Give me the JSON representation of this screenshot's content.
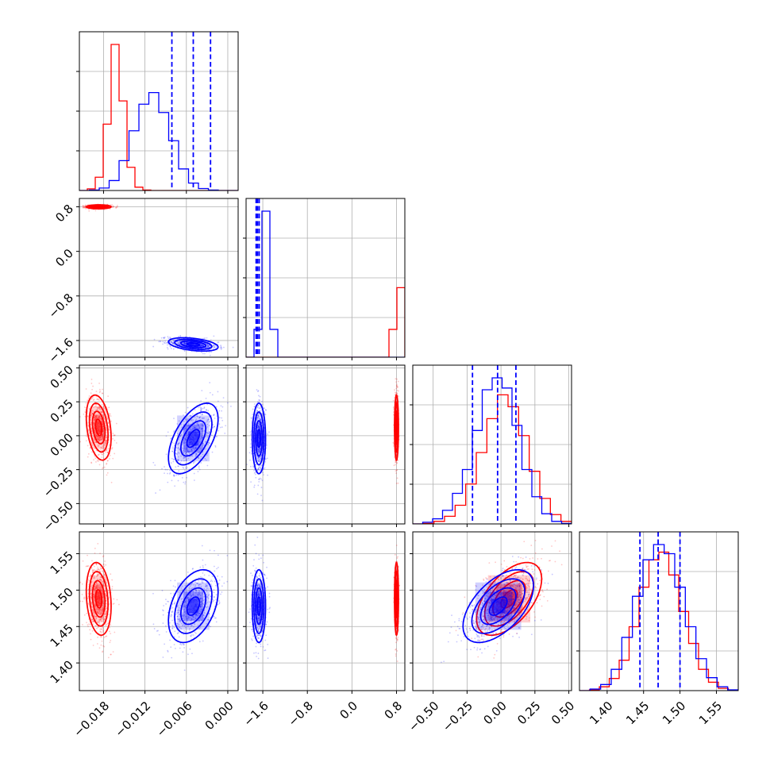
{
  "chart_data": {
    "type": "corner",
    "title": "",
    "grid": true,
    "colors": {
      "series_a": "#ff0000",
      "series_b": "#0000ff"
    },
    "parameters": [
      {
        "range": [
          -0.0215,
          0.0015
        ],
        "ticks": [
          -0.018,
          -0.012,
          -0.006,
          0.0
        ],
        "tick_labels": [
          "−0.018",
          "−0.012",
          "−0.006",
          "0.000"
        ]
      },
      {
        "range": [
          -1.9,
          0.95
        ],
        "ticks": [
          -1.6,
          -0.8,
          0.0,
          0.8
        ],
        "tick_labels": [
          "−1.6",
          "−0.8",
          "0.0",
          "0.8"
        ]
      },
      {
        "range": [
          -0.65,
          0.52
        ],
        "ticks": [
          -0.5,
          -0.25,
          0.0,
          0.25,
          0.5
        ],
        "tick_labels": [
          "−0.50",
          "−0.25",
          "0.00",
          "0.25",
          "0.50"
        ]
      },
      {
        "range": [
          1.362,
          1.58
        ],
        "ticks": [
          1.4,
          1.45,
          1.5,
          1.55
        ],
        "tick_labels": [
          "1.40",
          "1.45",
          "1.50",
          "1.55"
        ]
      }
    ],
    "series": [
      {
        "color": "#ff0000",
        "mean": [
          -0.0187,
          0.8,
          0.06,
          1.488
        ],
        "std": [
          0.0009,
          0.018,
          0.12,
          0.025
        ],
        "corr": [
          [
            1,
            0,
            -0.3,
            -0.2
          ],
          [
            0,
            1,
            0,
            0
          ],
          [
            -0.3,
            0,
            1,
            0.55
          ],
          [
            -0.2,
            0,
            0.55,
            1
          ]
        ],
        "histograms": [
          [
            0,
            10,
            80,
            400,
            880,
            540,
            140,
            20,
            3,
            0,
            0,
            0,
            0,
            0,
            0,
            0,
            0,
            0,
            0,
            0
          ],
          [
            0,
            0,
            0,
            0,
            0,
            0,
            0,
            0,
            0,
            0,
            0,
            0,
            0,
            0,
            0,
            0,
            0,
            0,
            40,
            100
          ],
          [
            0,
            3,
            15,
            45,
            110,
            235,
            420,
            620,
            760,
            690,
            520,
            310,
            150,
            55,
            15
          ],
          [
            0,
            5,
            25,
            80,
            200,
            420,
            680,
            860,
            910,
            760,
            520,
            310,
            140,
            55,
            15,
            4
          ]
        ]
      },
      {
        "color": "#0000ff",
        "mean": [
          -0.005,
          -1.67,
          -0.02,
          1.478
        ],
        "std": [
          0.0018,
          0.06,
          0.13,
          0.025
        ],
        "corr": [
          [
            1,
            -0.4,
            0.55,
            0.4
          ],
          [
            -0.4,
            1,
            0,
            0
          ],
          [
            0.55,
            0,
            1,
            0.55
          ],
          [
            0.4,
            0,
            0.55,
            1
          ]
        ],
        "quantile_lines": [
          [
            -0.0081,
            -0.005,
            -0.0025
          ],
          [
            -1.72,
            -1.695,
            -1.665
          ],
          [
            -0.21,
            -0.025,
            0.11
          ],
          [
            1.445,
            1.47,
            1.5
          ]
        ],
        "histograms": [
          [
            0,
            3,
            15,
            60,
            180,
            360,
            520,
            590,
            470,
            300,
            130,
            45,
            12,
            3,
            0,
            0
          ],
          [
            0,
            40,
            210,
            40,
            0,
            0,
            0,
            0,
            0,
            0,
            0,
            0,
            0,
            0,
            0,
            0,
            0,
            0,
            0,
            0
          ],
          [
            0,
            10,
            30,
            80,
            180,
            320,
            550,
            790,
            860,
            800,
            580,
            320,
            160,
            60,
            15,
            3
          ],
          [
            0,
            10,
            40,
            140,
            350,
            620,
            860,
            960,
            900,
            680,
            420,
            210,
            85,
            25,
            5
          ]
        ]
      }
    ]
  }
}
